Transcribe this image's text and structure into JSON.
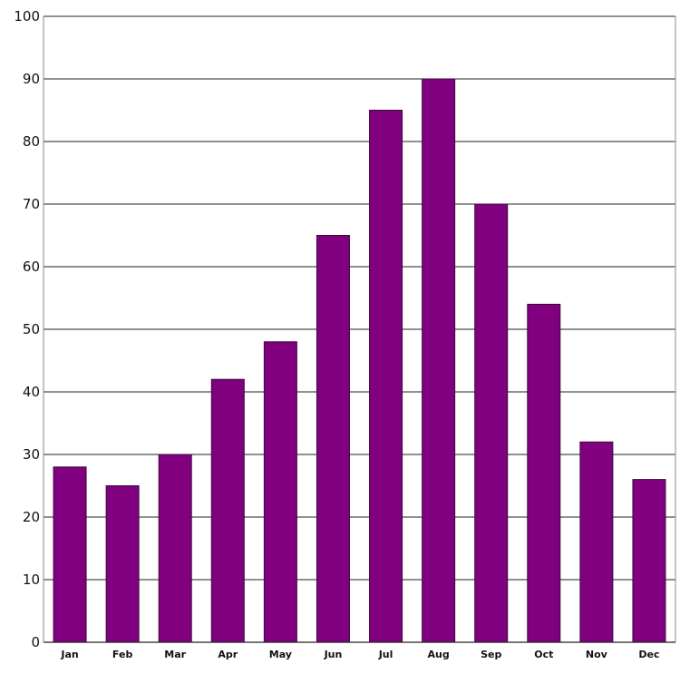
{
  "chart_data": {
    "type": "bar",
    "categories": [
      "Jan",
      "Feb",
      "Mar",
      "Apr",
      "May",
      "Jun",
      "Jul",
      "Aug",
      "Sep",
      "Oct",
      "Nov",
      "Dec"
    ],
    "values": [
      28,
      25,
      30,
      42,
      48,
      65,
      85,
      90,
      70,
      54,
      32,
      26
    ],
    "title": "",
    "xlabel": "",
    "ylabel": "",
    "ylim": [
      0,
      100
    ],
    "yticks": [
      "0",
      "10",
      "20",
      "30",
      "40",
      "50",
      "60",
      "70",
      "80",
      "90",
      "100"
    ],
    "grid": true,
    "legend": "none",
    "bar_color": "#800080"
  }
}
